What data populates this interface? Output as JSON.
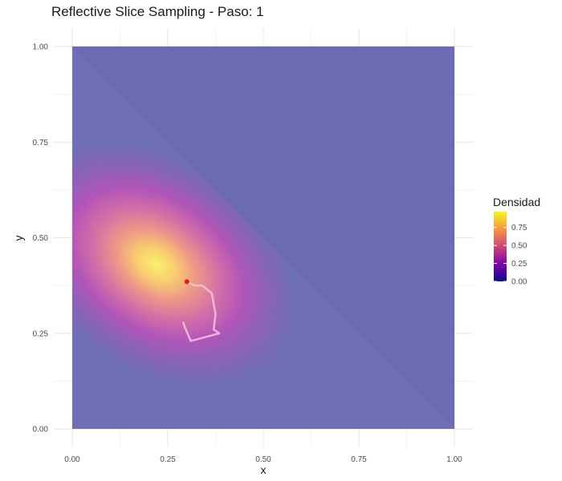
{
  "chart_data": {
    "type": "heatmap",
    "title": "Reflective Slice Sampling - Paso: 1",
    "xlabel": "x",
    "ylabel": "y",
    "xlim": [
      0,
      1
    ],
    "ylim": [
      0,
      1
    ],
    "x_ticks": [
      "0.00",
      "0.25",
      "0.50",
      "0.75",
      "1.00"
    ],
    "y_ticks": [
      "0.00",
      "0.25",
      "0.50",
      "0.75",
      "1.00"
    ],
    "grid": true,
    "legend": {
      "title": "Densidad",
      "position": "right",
      "colormap": "plasma",
      "ticks": [
        "0.00",
        "0.25",
        "0.50",
        "0.75"
      ],
      "range": [
        0,
        0.97
      ]
    },
    "density": {
      "support": "x + y <= 1",
      "peak": {
        "x": 0.22,
        "y": 0.43,
        "value": 0.97
      },
      "outside_support_color": "#6b6bb4"
    },
    "path": {
      "color": "#f3c4e0",
      "points": [
        {
          "x": 0.3,
          "y": 0.385
        },
        {
          "x": 0.32,
          "y": 0.375
        },
        {
          "x": 0.34,
          "y": 0.375
        },
        {
          "x": 0.365,
          "y": 0.355
        },
        {
          "x": 0.375,
          "y": 0.3
        },
        {
          "x": 0.37,
          "y": 0.26
        },
        {
          "x": 0.385,
          "y": 0.25
        },
        {
          "x": 0.31,
          "y": 0.23
        },
        {
          "x": 0.295,
          "y": 0.265
        },
        {
          "x": 0.29,
          "y": 0.28
        }
      ]
    },
    "current_point": {
      "x": 0.3,
      "y": 0.385,
      "color": "#e31a1c"
    }
  }
}
